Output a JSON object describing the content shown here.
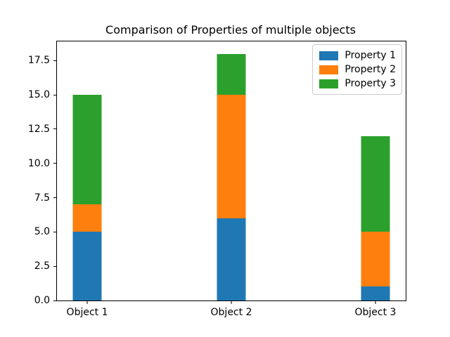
{
  "chart_data": {
    "type": "bar",
    "stacked": true,
    "title": "Comparison of Properties of multiple objects",
    "xlabel": "",
    "ylabel": "",
    "categories": [
      "Object 1",
      "Object 2",
      "Object 3"
    ],
    "series": [
      {
        "name": "Property 1",
        "color": "#1f77b4",
        "values": [
          5,
          6,
          1
        ]
      },
      {
        "name": "Property 2",
        "color": "#ff7f0e",
        "values": [
          2,
          9,
          4
        ]
      },
      {
        "name": "Property 3",
        "color": "#2ca02c",
        "values": [
          8,
          3,
          7
        ]
      }
    ],
    "totals": [
      15,
      18,
      12
    ],
    "ylim": [
      0,
      18.9
    ],
    "yticks": [
      "0.0",
      "2.5",
      "5.0",
      "7.5",
      "10.0",
      "12.5",
      "15.0",
      "17.5"
    ],
    "grid": false,
    "legend_position": "upper right",
    "background_color": "#ffffff",
    "spine_color": "#000000"
  }
}
